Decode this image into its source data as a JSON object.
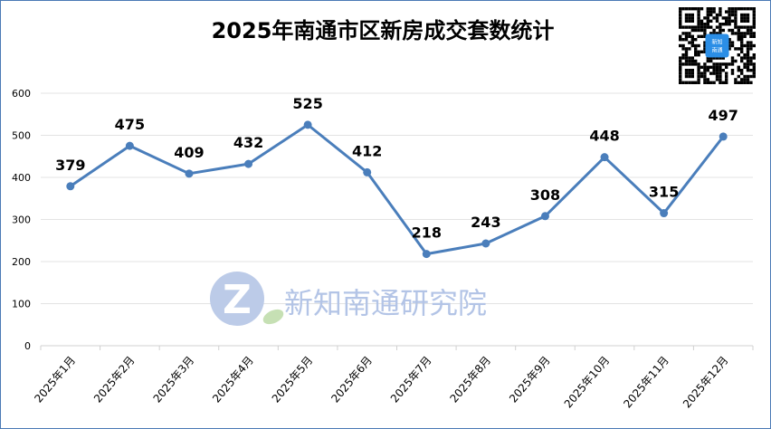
{
  "chart_data": {
    "type": "line",
    "title": "2025年南通市区新房成交套数统计",
    "categories": [
      "2025年1月",
      "2025年2月",
      "2025年3月",
      "2025年4月",
      "2025年5月",
      "2025年6月",
      "2025年7月",
      "2025年8月",
      "2025年9月",
      "2025年10月",
      "2025年11月",
      "2025年12月"
    ],
    "values": [
      379,
      475,
      409,
      432,
      525,
      412,
      218,
      243,
      308,
      448,
      315,
      497
    ],
    "ylim": [
      0,
      600
    ],
    "yticks": [
      0,
      100,
      200,
      300,
      400,
      500,
      600
    ],
    "grid": true,
    "legend": "none",
    "line_color": "#4a7ebb"
  },
  "watermark": {
    "text": "新知南通研究院",
    "logo": "Z"
  },
  "qr_code": {
    "center_text": "新知南通"
  }
}
